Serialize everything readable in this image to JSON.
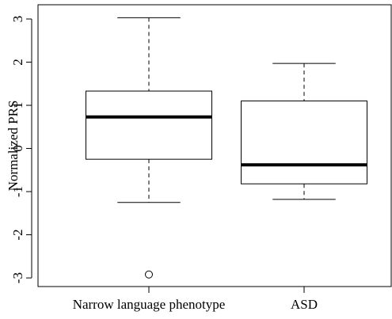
{
  "chart_data": {
    "type": "boxplot",
    "ylabel": "Normalized PRS",
    "categories": [
      "Narrow language phenotype",
      "ASD"
    ],
    "boxes": [
      {
        "min": -1.25,
        "q1": -0.25,
        "median": 0.73,
        "q3": 1.33,
        "max": 3.03,
        "outliers": [
          -2.92
        ]
      },
      {
        "min": -1.18,
        "q1": -0.82,
        "median": -0.38,
        "q3": 1.1,
        "max": 1.97,
        "outliers": []
      }
    ],
    "color": "#000000",
    "ylim": [
      -3.2,
      3.33
    ],
    "yticks": [
      -3,
      -2,
      -1,
      0,
      1,
      2,
      3
    ]
  }
}
